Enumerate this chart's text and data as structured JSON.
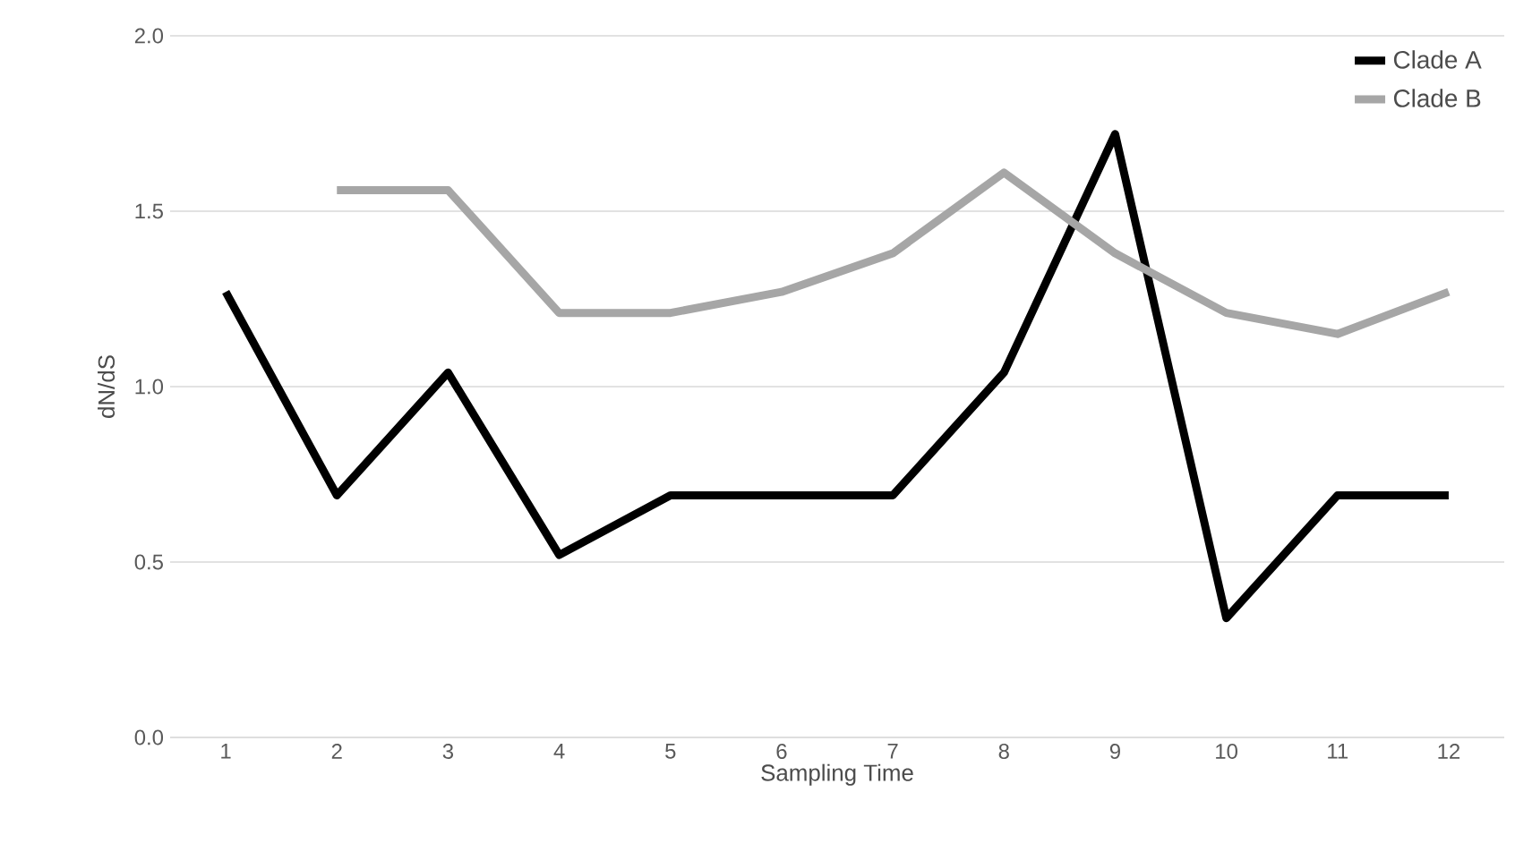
{
  "chart_data": {
    "type": "line",
    "xlabel": "Sampling Time",
    "ylabel": "dN/dS",
    "categories": [
      "1",
      "2",
      "3",
      "4",
      "5",
      "6",
      "7",
      "8",
      "9",
      "10",
      "11",
      "12"
    ],
    "series": [
      {
        "name": "Clade A",
        "color": "#000000",
        "values": [
          1.27,
          0.69,
          1.04,
          0.52,
          0.69,
          0.69,
          0.69,
          1.04,
          1.72,
          0.34,
          0.69,
          0.69
        ]
      },
      {
        "name": "Clade B",
        "color": "#a6a6a6",
        "values": [
          null,
          1.56,
          1.56,
          1.21,
          1.21,
          1.27,
          1.38,
          1.61,
          1.38,
          1.21,
          1.15,
          1.27
        ]
      }
    ],
    "ylim": [
      0,
      2
    ],
    "yticks": [
      {
        "value": 0,
        "label": "0.0"
      },
      {
        "value": 0.5,
        "label": "0.5"
      },
      {
        "value": 1,
        "label": "1.0"
      },
      {
        "value": 1.5,
        "label": "1.5"
      },
      {
        "value": 2,
        "label": "2.0"
      }
    ],
    "grid": "y",
    "legend": "top right",
    "marker": "none",
    "line_style": "solid"
  }
}
